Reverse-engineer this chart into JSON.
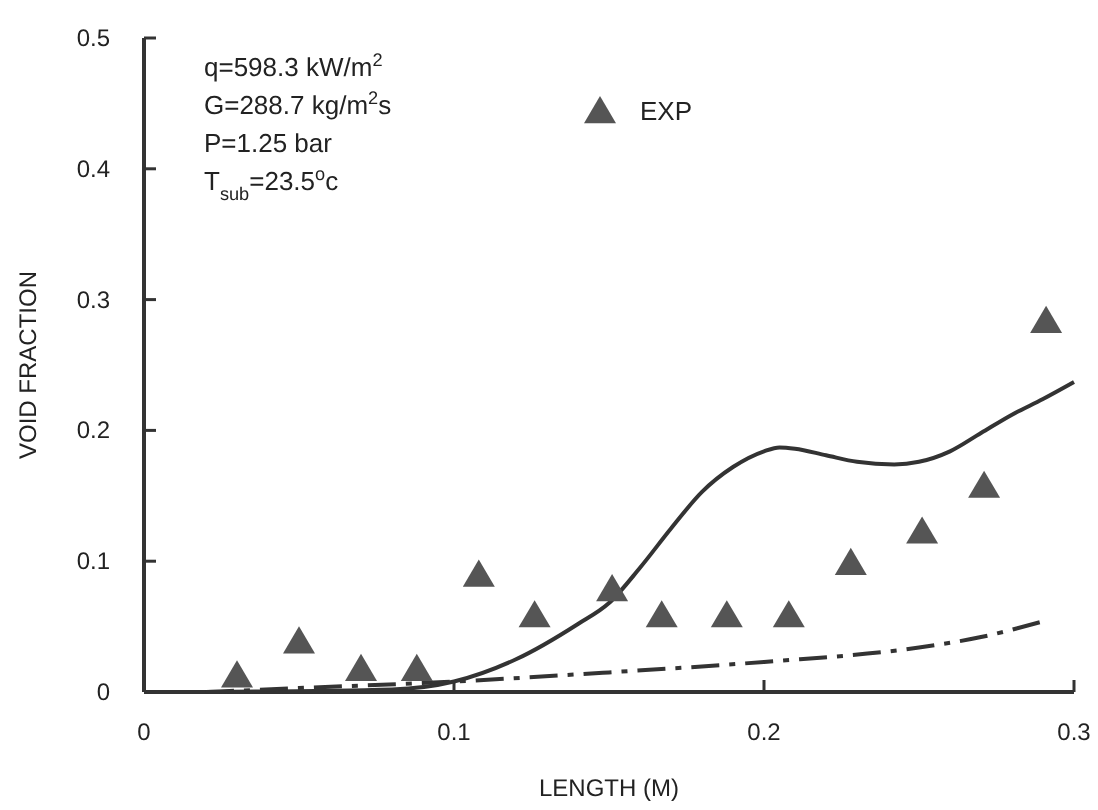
{
  "chart_data": {
    "type": "line",
    "xlabel": "LENGTH (M)",
    "ylabel": "VOID FRACTION",
    "xlim": [
      0,
      0.3
    ],
    "xticks": [
      0,
      0.1,
      0.2,
      0.3
    ],
    "ylim": [
      0,
      0.5
    ],
    "yticks": [
      0,
      0.1,
      0.2,
      0.3,
      0.4,
      0.5
    ],
    "grid": false,
    "legend": "top",
    "annotations": [
      "q=598.3 kW/m$^{2}$",
      "G=288.7 kg/m$^{2}$s",
      "P=1.25 bar",
      "T$_{sub}$=23.5$^{o}$c"
    ],
    "series": [
      {
        "color": "#333333",
        "line_style": "solid",
        "x": [
          0.02,
          0.08,
          0.1,
          0.12,
          0.14,
          0.15,
          0.16,
          0.17,
          0.18,
          0.19,
          0.2,
          0.205,
          0.21,
          0.22,
          0.23,
          0.242,
          0.25,
          0.26,
          0.27,
          0.28,
          0.29,
          0.3
        ],
        "values": [
          0,
          0.002,
          0.008,
          0.025,
          0.052,
          0.068,
          0.095,
          0.125,
          0.153,
          0.172,
          0.184,
          0.187,
          0.186,
          0.181,
          0.176,
          0.174,
          0.176,
          0.184,
          0.198,
          0.212,
          0.224,
          0.237
        ]
      },
      {
        "color": "#333333",
        "line_style": "dashed",
        "x": [
          0.02,
          0.05,
          0.1,
          0.15,
          0.2,
          0.25,
          0.27,
          0.29
        ],
        "values": [
          0,
          0.003,
          0.008,
          0.015,
          0.023,
          0.034,
          0.042,
          0.054
        ]
      },
      {
        "type": "scatter",
        "name": "EXP",
        "color": "#555555",
        "marker": "triangle",
        "x": [
          0.03,
          0.05,
          0.07,
          0.088,
          0.108,
          0.126,
          0.151,
          0.167,
          0.188,
          0.208,
          0.228,
          0.251,
          0.271,
          0.291
        ],
        "values": [
          0.012,
          0.038,
          0.017,
          0.017,
          0.089,
          0.058,
          0.078,
          0.058,
          0.058,
          0.058,
          0.098,
          0.122,
          0.157,
          0.283
        ]
      }
    ]
  }
}
